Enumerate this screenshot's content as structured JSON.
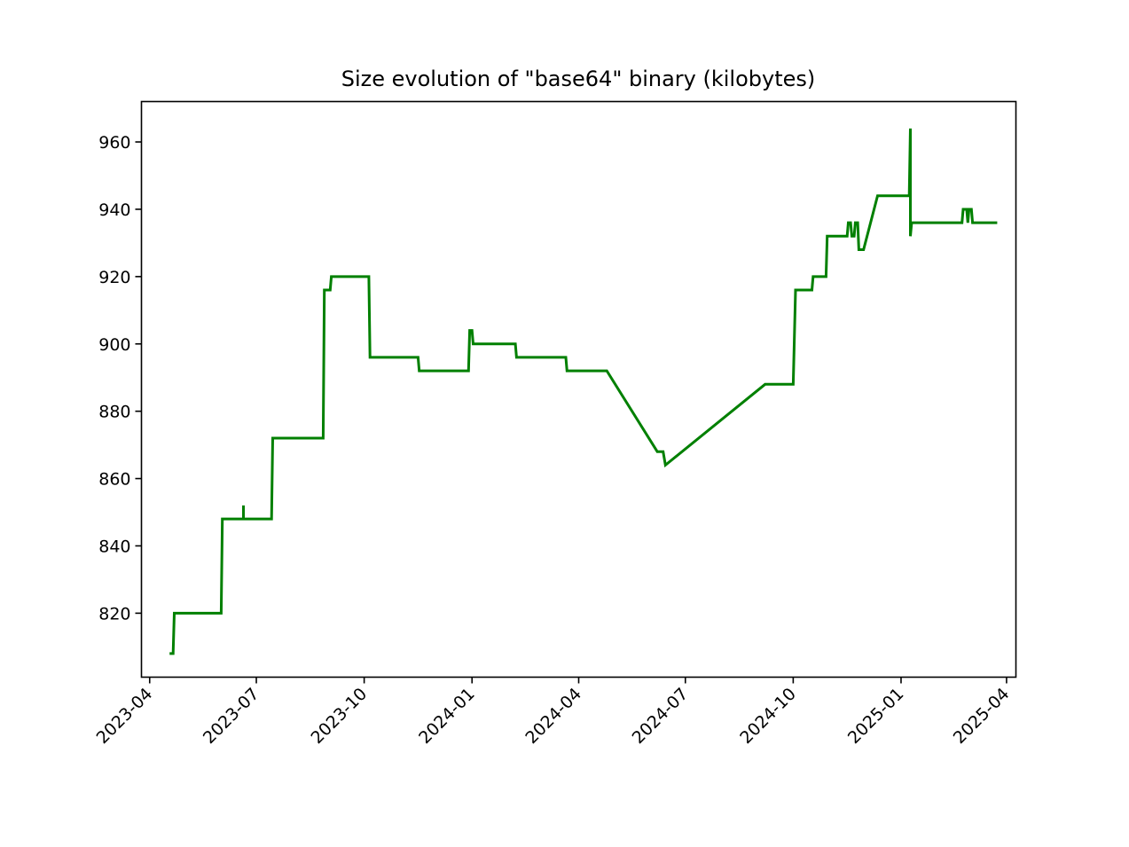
{
  "chart_data": {
    "type": "line",
    "title": "Size evolution of \"base64\" binary (kilobytes)",
    "xlabel": "",
    "ylabel": "",
    "x_scale": "date",
    "grid": false,
    "legend": "none",
    "xlim": [
      "2023-03-25",
      "2025-04-09"
    ],
    "ylim": [
      801,
      972
    ],
    "xticks": [
      "2023-04",
      "2023-07",
      "2023-10",
      "2024-01",
      "2024-04",
      "2024-07",
      "2024-10",
      "2025-01",
      "2025-04"
    ],
    "yticks": [
      820,
      840,
      860,
      880,
      900,
      920,
      940,
      960
    ],
    "series": [
      {
        "color": "#008000",
        "points": [
          [
            "2023-04-18",
            808
          ],
          [
            "2023-04-21",
            808
          ],
          [
            "2023-04-22",
            820
          ],
          [
            "2023-06-01",
            820
          ],
          [
            "2023-06-02",
            848
          ],
          [
            "2023-06-20",
            848
          ],
          [
            "2023-06-20",
            852
          ],
          [
            "2023-06-20",
            848
          ],
          [
            "2023-07-14",
            848
          ],
          [
            "2023-07-15",
            872
          ],
          [
            "2023-08-27",
            872
          ],
          [
            "2023-08-28",
            916
          ],
          [
            "2023-09-02",
            916
          ],
          [
            "2023-09-03",
            920
          ],
          [
            "2023-10-05",
            920
          ],
          [
            "2023-10-06",
            896
          ],
          [
            "2023-11-16",
            896
          ],
          [
            "2023-11-17",
            892
          ],
          [
            "2023-12-29",
            892
          ],
          [
            "2023-12-30",
            904
          ],
          [
            "2024-01-01",
            904
          ],
          [
            "2024-01-02",
            900
          ],
          [
            "2024-02-07",
            900
          ],
          [
            "2024-02-08",
            896
          ],
          [
            "2024-03-21",
            896
          ],
          [
            "2024-03-22",
            892
          ],
          [
            "2024-04-25",
            892
          ],
          [
            "2024-06-07",
            868
          ],
          [
            "2024-06-12",
            868
          ],
          [
            "2024-06-14",
            864
          ],
          [
            "2024-09-07",
            888
          ],
          [
            "2024-10-01",
            888
          ],
          [
            "2024-10-03",
            916
          ],
          [
            "2024-10-17",
            916
          ],
          [
            "2024-10-18",
            920
          ],
          [
            "2024-10-29",
            920
          ],
          [
            "2024-10-30",
            932
          ],
          [
            "2024-11-16",
            932
          ],
          [
            "2024-11-17",
            936
          ],
          [
            "2024-11-19",
            936
          ],
          [
            "2024-11-20",
            932
          ],
          [
            "2024-11-22",
            932
          ],
          [
            "2024-11-23",
            936
          ],
          [
            "2024-11-25",
            936
          ],
          [
            "2024-11-26",
            928
          ],
          [
            "2024-11-30",
            928
          ],
          [
            "2024-12-12",
            944
          ],
          [
            "2025-01-08",
            944
          ],
          [
            "2025-01-09",
            964
          ],
          [
            "2025-01-09",
            932
          ],
          [
            "2025-01-10",
            936
          ],
          [
            "2025-02-22",
            936
          ],
          [
            "2025-02-23",
            940
          ],
          [
            "2025-02-26",
            940
          ],
          [
            "2025-02-27",
            936
          ],
          [
            "2025-02-28",
            940
          ],
          [
            "2025-03-02",
            940
          ],
          [
            "2025-03-03",
            936
          ],
          [
            "2025-03-24",
            936
          ]
        ]
      }
    ]
  }
}
